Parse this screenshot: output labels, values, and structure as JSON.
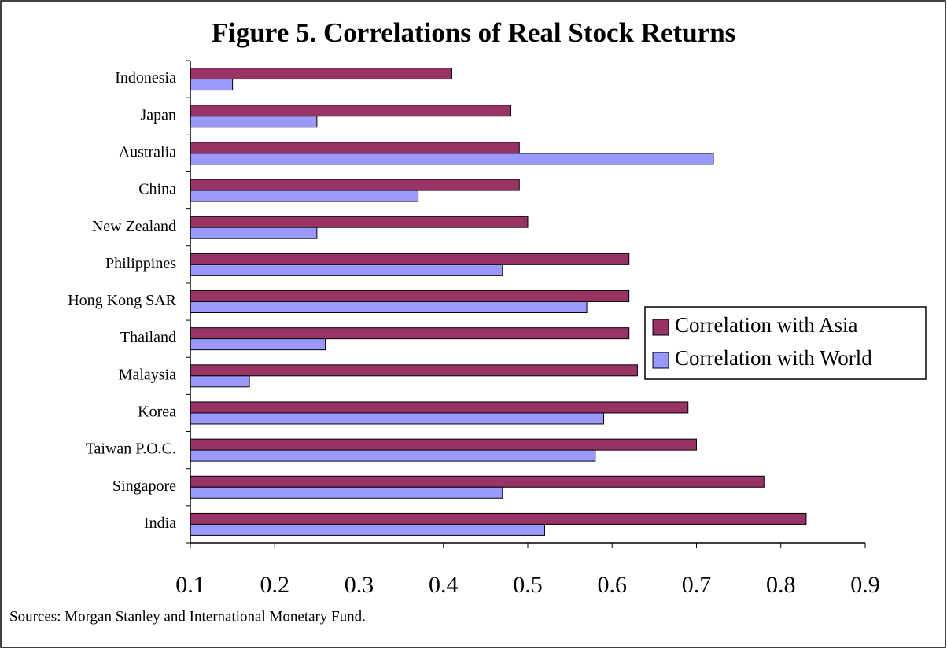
{
  "chart_data": {
    "type": "barh",
    "title": "Figure 5. Correlations of Real Stock Returns",
    "categories": [
      "Indonesia",
      "Japan",
      "Australia",
      "China",
      "New Zealand",
      "Philippines",
      "Hong Kong SAR",
      "Thailand",
      "Malaysia",
      "Korea",
      "Taiwan P.O.C.",
      "Singapore",
      "India"
    ],
    "series": [
      {
        "name": "Correlation with Asia",
        "color": "#993366",
        "values": [
          0.41,
          0.48,
          0.49,
          0.49,
          0.5,
          0.62,
          0.62,
          0.62,
          0.63,
          0.69,
          0.7,
          0.78,
          0.83
        ]
      },
      {
        "name": "Correlation with World",
        "color": "#9999ff",
        "values": [
          0.15,
          0.25,
          0.72,
          0.37,
          0.25,
          0.47,
          0.57,
          0.26,
          0.17,
          0.59,
          0.58,
          0.47,
          0.52
        ]
      }
    ],
    "xlim": [
      0.1,
      0.9
    ],
    "xticks": [
      0.1,
      0.2,
      0.3,
      0.4,
      0.5,
      0.6,
      0.7,
      0.8,
      0.9
    ],
    "legend": "right",
    "note": "Sources: Morgan Stanley and International Monetary Fund."
  }
}
